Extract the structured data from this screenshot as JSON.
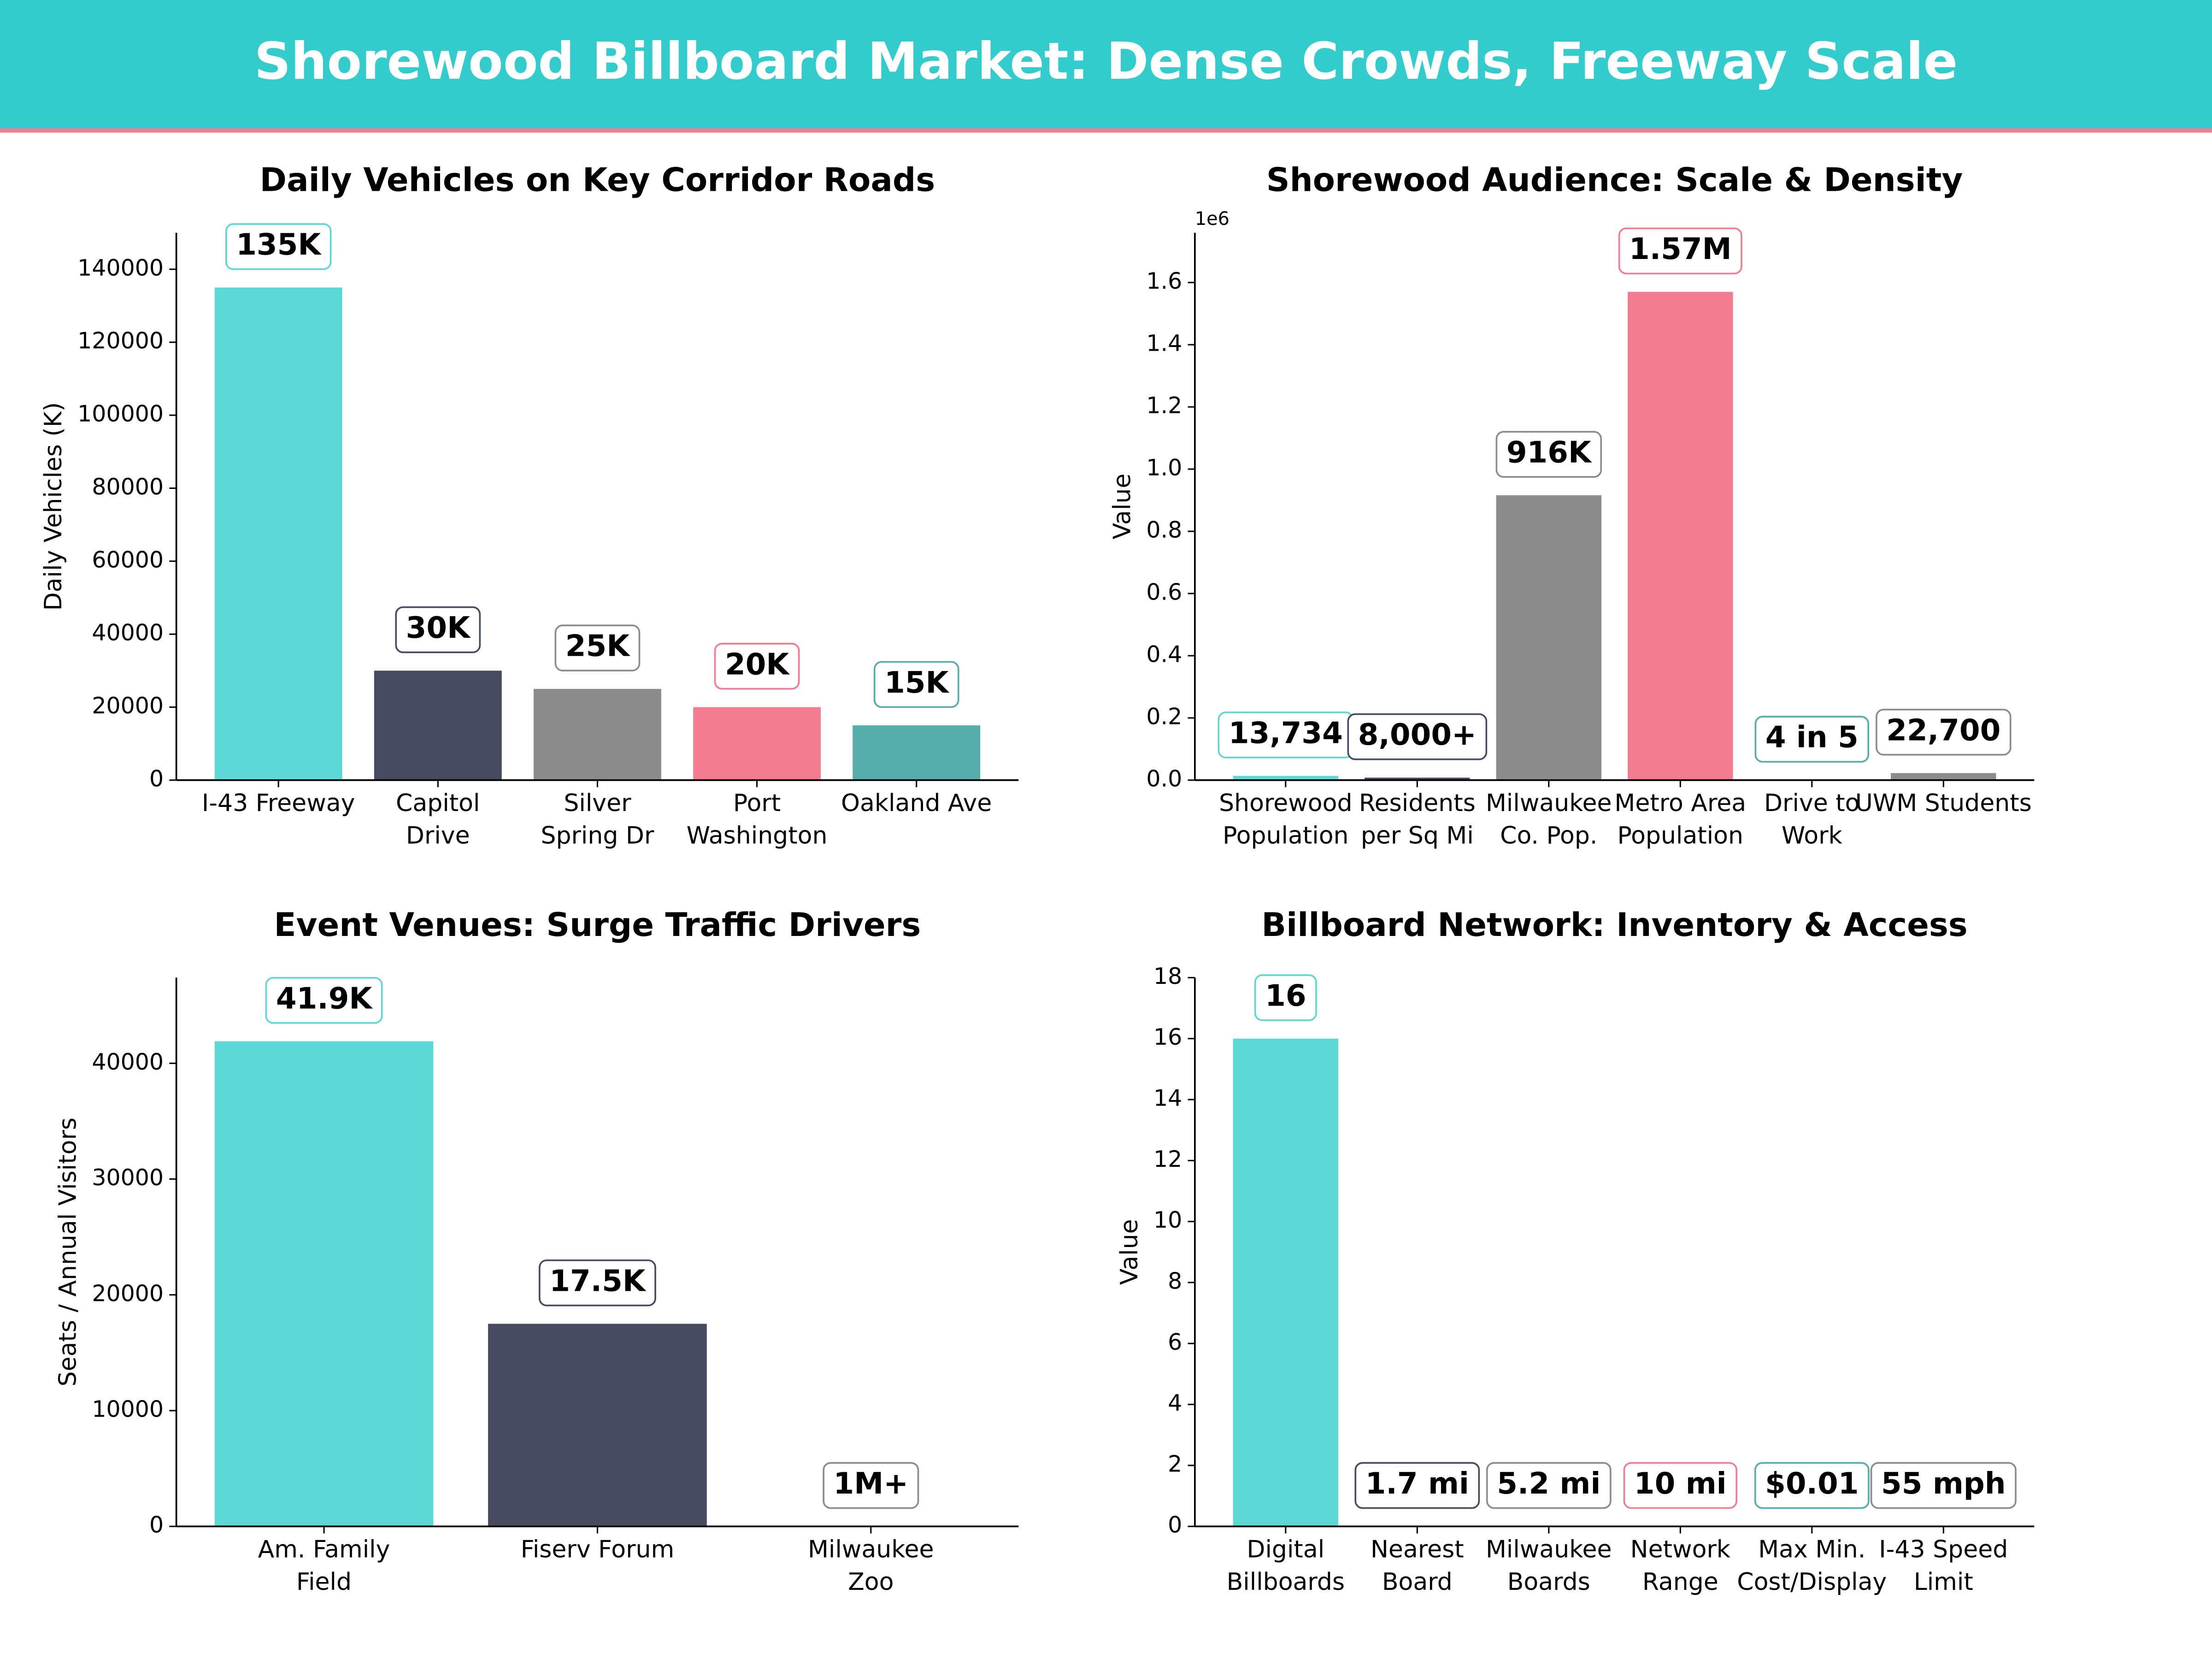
{
  "title": "Shorewood Billboard Market: Dense Crowds, Freeway Scale",
  "chart_data": [
    {
      "type": "bar",
      "title": "Daily Vehicles on Key Corridor Roads",
      "ylabel": "Daily Vehicles (K)",
      "categories": [
        "I-43 Freeway",
        "Capitol\nDrive",
        "Silver\nSpring Dr",
        "Port\nWashington",
        "Oakland Ave"
      ],
      "values": [
        135000,
        30000,
        25000,
        20000,
        15000
      ],
      "value_labels": [
        "135K",
        "30K",
        "25K",
        "20K",
        "15K"
      ],
      "colors": [
        "#5dd8d4",
        "#464b60",
        "#8c8c8c",
        "#f47c90",
        "#56adab"
      ],
      "ylim": [
        0,
        150000
      ],
      "yticks": [
        0,
        20000,
        40000,
        60000,
        80000,
        100000,
        120000,
        140000
      ]
    },
    {
      "type": "bar",
      "title": "Shorewood Audience: Scale & Density",
      "ylabel": "Value",
      "y_offset_label": "1e6",
      "categories": [
        "Shorewood\nPopulation",
        "Residents\nper Sq Mi",
        "Milwaukee\nCo. Pop.",
        "Metro Area\nPopulation",
        "Drive to\nWork",
        "UWM Students"
      ],
      "values": [
        13734,
        8000,
        916000,
        1570000,
        0.8,
        22700
      ],
      "value_labels": [
        "13,734",
        "8,000+",
        "916K",
        "1.57M",
        "4 in 5",
        "22,700"
      ],
      "colors": [
        "#5dd8d4",
        "#464b60",
        "#8c8c8c",
        "#f47c90",
        "#56adab",
        "#8c8c8c"
      ],
      "ylim": [
        0,
        1760000
      ],
      "yticks": [
        {
          "value": 0,
          "label": "0.0"
        },
        {
          "value": 200000,
          "label": "0.2"
        },
        {
          "value": 400000,
          "label": "0.4"
        },
        {
          "value": 600000,
          "label": "0.6"
        },
        {
          "value": 800000,
          "label": "0.8"
        },
        {
          "value": 1000000,
          "label": "1.0"
        },
        {
          "value": 1200000,
          "label": "1.2"
        },
        {
          "value": 1400000,
          "label": "1.4"
        },
        {
          "value": 1600000,
          "label": "1.6"
        }
      ]
    },
    {
      "type": "bar",
      "title": "Event Venues: Surge Traffic Drivers",
      "ylabel": "Seats / Annual Visitors",
      "categories": [
        "Am. Family\nField",
        "Fiserv Forum",
        "Milwaukee\nZoo"
      ],
      "values": [
        41900,
        17500,
        null
      ],
      "value_labels": [
        "41.9K",
        "17.5K",
        "1M+"
      ],
      "colors": [
        "#5dd8d4",
        "#464b60",
        "#8c8c8c"
      ],
      "ylim": [
        0,
        47400
      ],
      "yticks": [
        0,
        10000,
        20000,
        30000,
        40000
      ]
    },
    {
      "type": "bar",
      "title": "Billboard Network: Inventory & Access",
      "ylabel": "Value",
      "categories": [
        "Digital\nBillboards",
        "Nearest\nBoard",
        "Milwaukee\nBoards",
        "Network\nRange",
        "Max Min.\nCost/Display",
        "I-43 Speed\nLimit"
      ],
      "values": [
        16,
        null,
        null,
        null,
        null,
        null
      ],
      "value_labels": [
        "16",
        "1.7 mi",
        "5.2 mi",
        "10 mi",
        "$0.01",
        "55 mph"
      ],
      "colors": [
        "#5dd8d4",
        "#464b60",
        "#8c8c8c",
        "#f47c90",
        "#56adab",
        "#8c8c8c"
      ],
      "ylim": [
        0,
        18
      ],
      "yticks": [
        0,
        2,
        4,
        6,
        8,
        10,
        12,
        14,
        16,
        18
      ]
    }
  ]
}
